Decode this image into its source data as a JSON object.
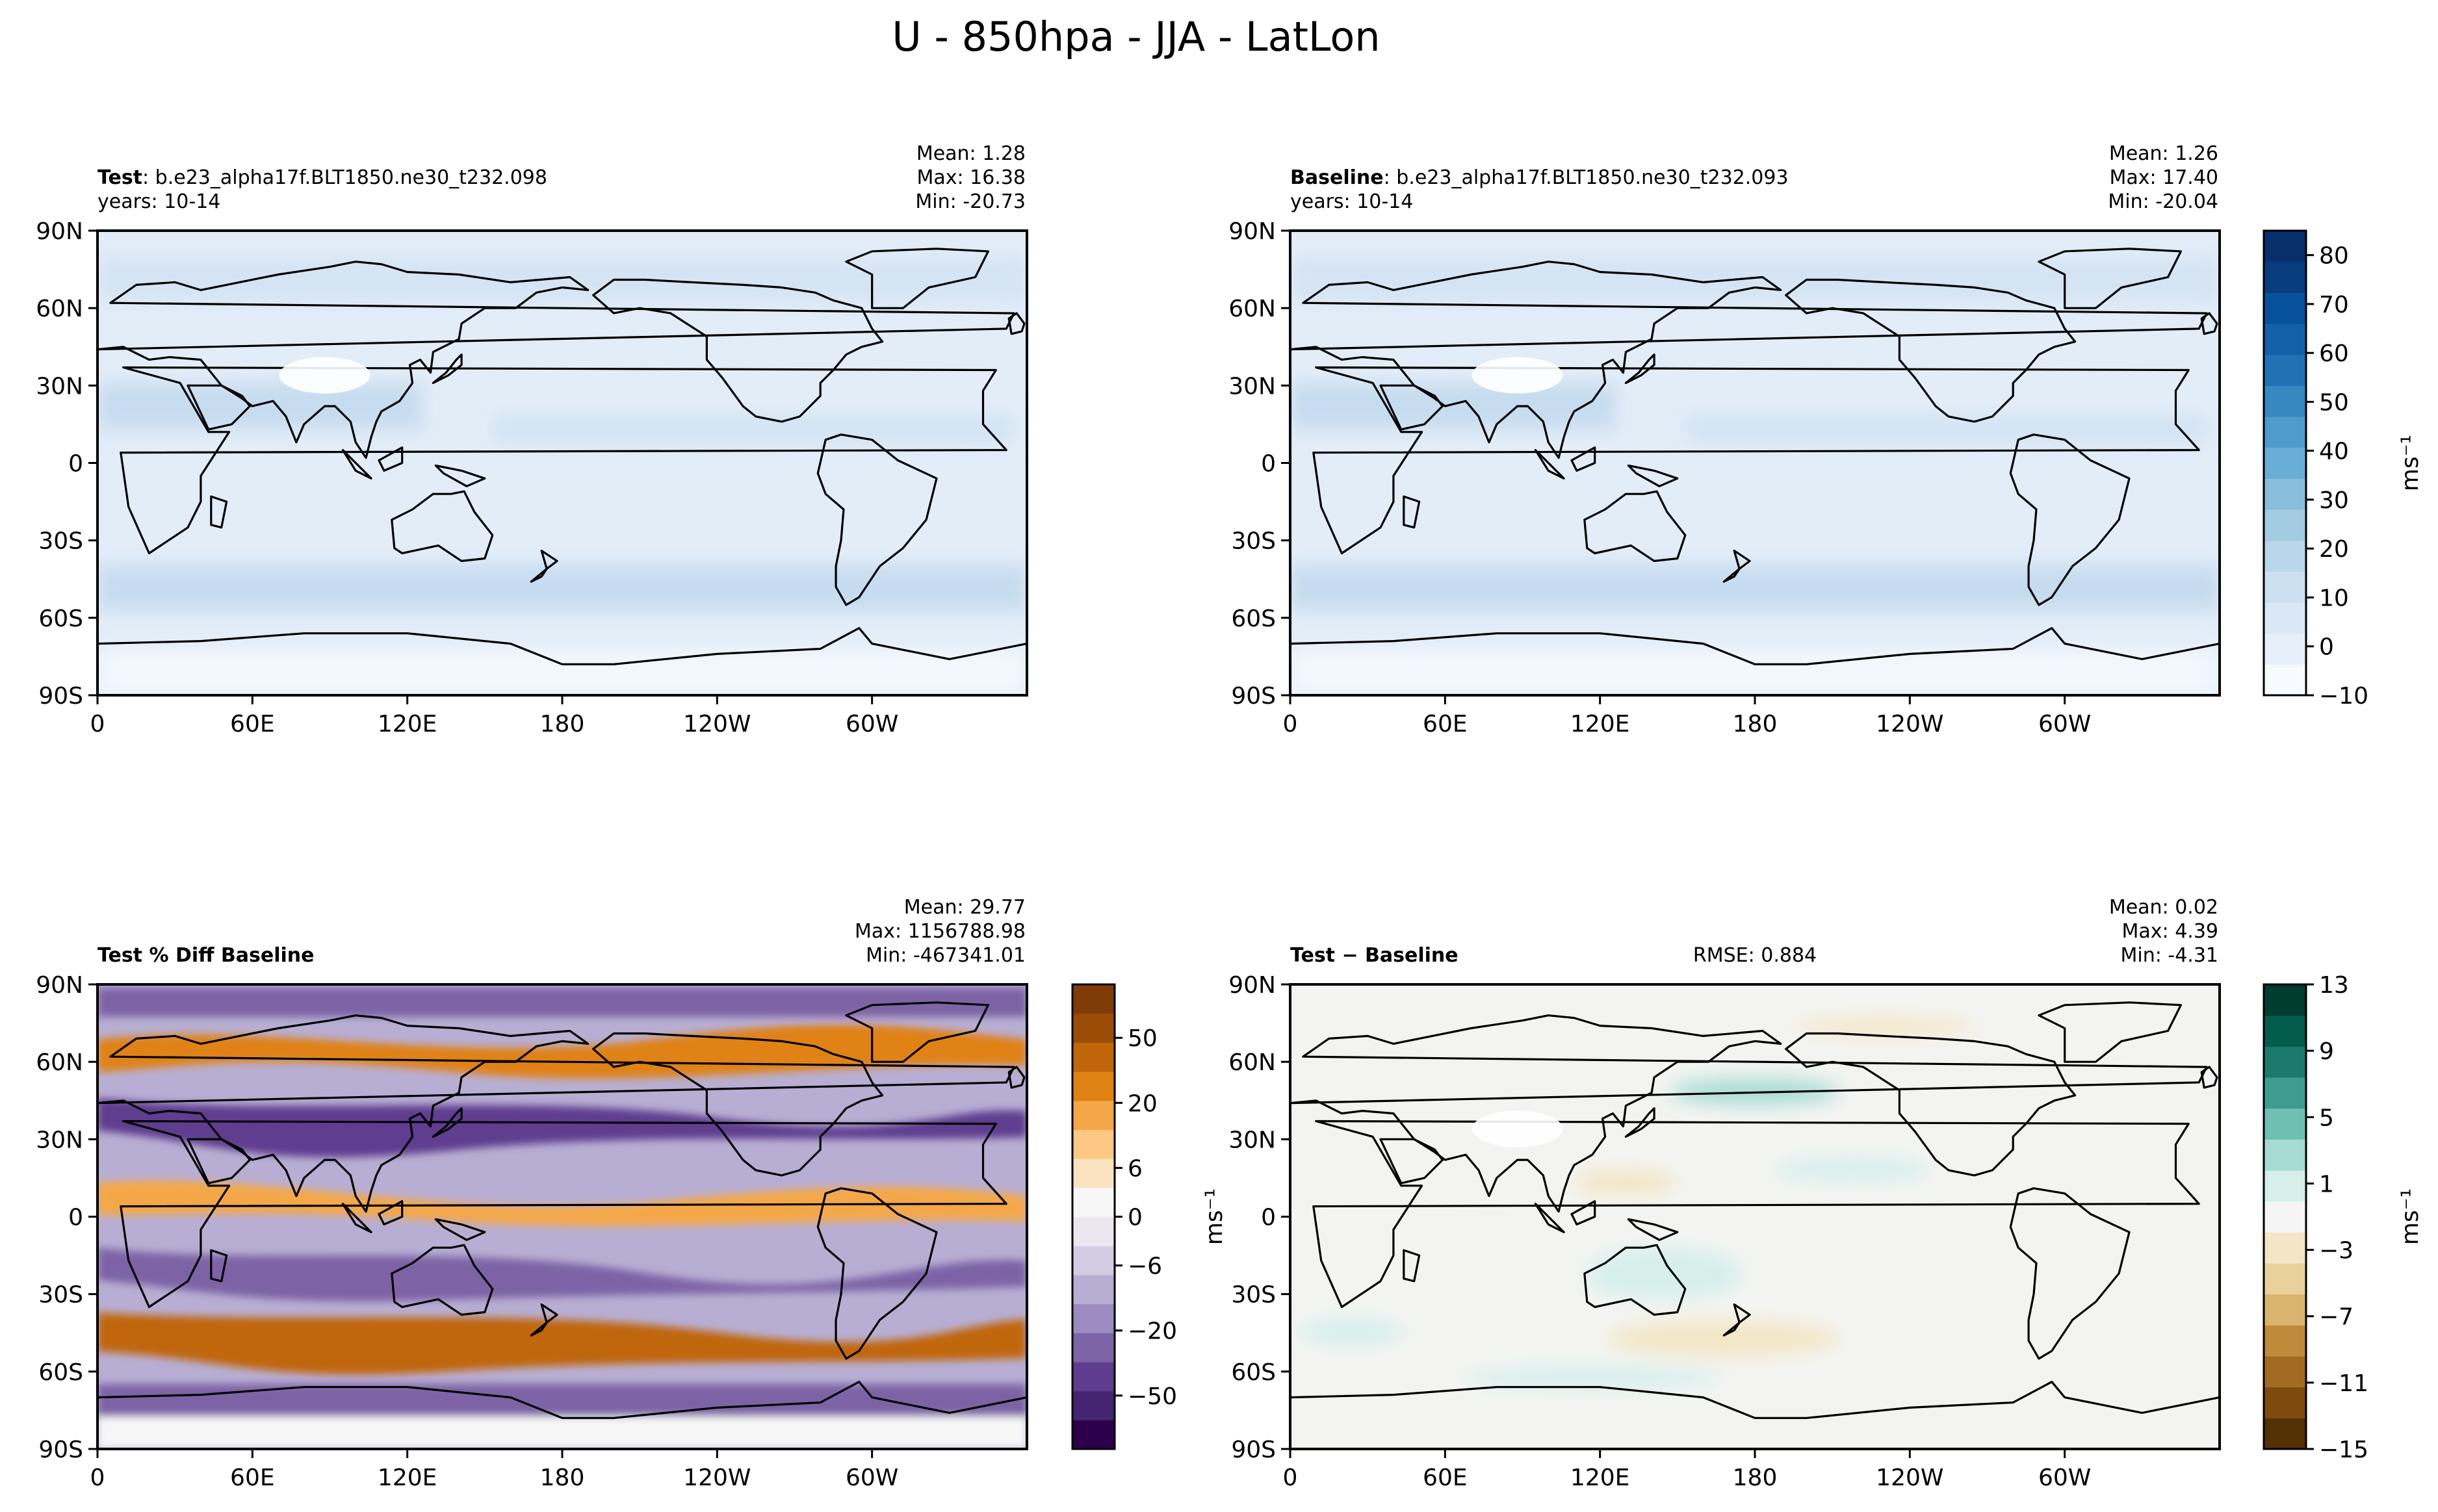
{
  "figure": {
    "title": "U - 850hpa - JJA - LatLon"
  },
  "colors": {
    "land_outline": "#000000",
    "blues": [
      "#f7fbff",
      "#e7f0fa",
      "#dae8f6",
      "#cde0f2",
      "#bad6eb",
      "#a3cce3",
      "#89bedc",
      "#6aaed6",
      "#4f9bcb",
      "#3787c0",
      "#2171b5",
      "#1460a8",
      "#08519c",
      "#083d7f",
      "#08306b"
    ],
    "puor": [
      "#2d004b",
      "#452472",
      "#5e3d8f",
      "#7d64a6",
      "#9c8bc0",
      "#b8aed3",
      "#d3cde4",
      "#ebe7f1",
      "#f7f7f7",
      "#fbe3c2",
      "#fdc883",
      "#f4a748",
      "#e08214",
      "#c0660a",
      "#9b4d08",
      "#7f3b08"
    ],
    "brbg": [
      "#543005",
      "#7f4a0e",
      "#a36b22",
      "#bf8a3c",
      "#d8b46e",
      "#e8d19b",
      "#f3e6c6",
      "#f5f5f5",
      "#d6efeb",
      "#a6dcd3",
      "#6fc0b2",
      "#3e9c8f",
      "#1c7a6d",
      "#035c4c",
      "#003c30"
    ]
  },
  "panels": [
    {
      "id": "test",
      "title_bold": "Test",
      "title_rest": ": b.e23_alpha17f.BLT1850.ne30_t232.098",
      "subtitle": "years: 10-14",
      "stats": [
        "Mean:  1.28",
        "Max: 16.38",
        "Min: -20.73"
      ],
      "rmse": null
    },
    {
      "id": "baseline",
      "title_bold": "Baseline",
      "title_rest": ": b.e23_alpha17f.BLT1850.ne30_t232.093",
      "subtitle": "years: 10-14",
      "stats": [
        "Mean:  1.26",
        "Max: 17.40",
        "Min: -20.04"
      ],
      "rmse": null
    },
    {
      "id": "pctdiff",
      "title_bold": "Test % Diff Baseline",
      "title_rest": "",
      "subtitle": "",
      "stats": [
        "Mean: 29.77",
        "Max: 1156788.98",
        "Min: -467341.01"
      ],
      "rmse": null
    },
    {
      "id": "diff",
      "title_bold": "Test",
      "title_rest": " − Baseline",
      "subtitle": "",
      "stats": [
        "Mean:  0.02",
        "Max:  4.39",
        "Min: -4.31"
      ],
      "rmse": "RMSE: 0.884"
    }
  ],
  "chart_data": [
    {
      "type": "heatmap",
      "title": "Test : b.e23_alpha17f.BLT1850.ne30_t232.098",
      "x_ticks": [
        "0",
        "60E",
        "120E",
        "180",
        "120W",
        "60W"
      ],
      "y_ticks": [
        "90N",
        "60N",
        "30N",
        "0",
        "30S",
        "60S",
        "90S"
      ],
      "field": "U wind 850hPa JJA",
      "range": [
        -10,
        85
      ]
    },
    {
      "type": "heatmap",
      "title": "Baseline : b.e23_alpha17f.BLT1850.ne30_t232.093",
      "x_ticks": [
        "0",
        "60E",
        "120E",
        "180",
        "120W",
        "60W"
      ],
      "y_ticks": [
        "90N",
        "60N",
        "30N",
        "0",
        "30S",
        "60S",
        "90S"
      ],
      "field": "U wind 850hPa JJA",
      "range": [
        -10,
        85
      ]
    },
    {
      "type": "heatmap",
      "title": "Test % Diff Baseline",
      "x_ticks": [
        "0",
        "60E",
        "120E",
        "180",
        "120W",
        "60W"
      ],
      "y_ticks": [
        "90N",
        "60N",
        "30N",
        "0",
        "30S",
        "60S",
        "90S"
      ],
      "field": "percent difference"
    },
    {
      "type": "heatmap",
      "title": "Test − Baseline",
      "x_ticks": [
        "0",
        "60E",
        "120E",
        "180",
        "120W",
        "60W"
      ],
      "y_ticks": [
        "90N",
        "60N",
        "30N",
        "0",
        "30S",
        "60S",
        "90S"
      ],
      "field": "difference"
    }
  ],
  "colorbars": {
    "main": {
      "ticks": [
        "80",
        "70",
        "60",
        "50",
        "40",
        "30",
        "20",
        "10",
        "0",
        "−10"
      ],
      "label": "ms⁻¹"
    },
    "pct": {
      "ticks": [
        "50",
        "20",
        "6",
        "0",
        "−6",
        "−20",
        "−50"
      ]
    },
    "pct_label": "ms⁻¹",
    "diff": {
      "ticks": [
        "13",
        "9",
        "5",
        "1",
        "−3",
        "−7",
        "−11",
        "−15"
      ],
      "label": "ms⁻¹"
    }
  }
}
